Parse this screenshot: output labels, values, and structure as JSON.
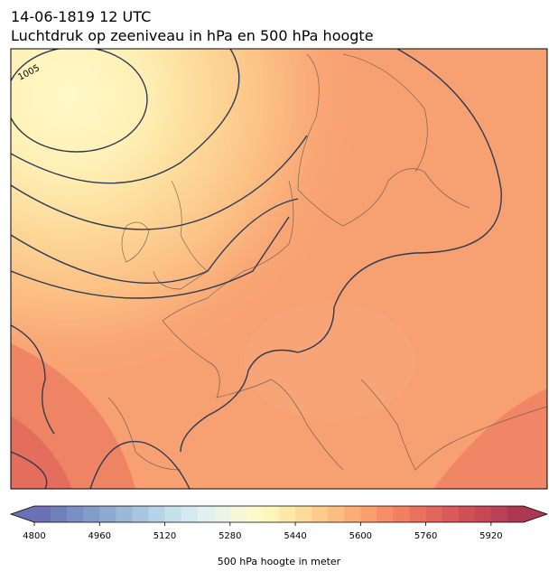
{
  "title": "14-06-1819 12 UTC",
  "subtitle": "Luchtdruk op zeeniveau in hPa en 500 hPa hoogte",
  "map": {
    "contour_labels": [
      "1005"
    ]
  },
  "colorbar": {
    "label": "500 hPa hoogte in meter",
    "lim": [
      4800,
      6000
    ],
    "ticks": [
      4800,
      4960,
      5120,
      5280,
      5440,
      5600,
      5760,
      5920
    ],
    "colors": [
      "#6b72b3",
      "#7180b9",
      "#7a8fc1",
      "#849dc8",
      "#8eaace",
      "#9bb8d6",
      "#a9c6de",
      "#b8d3e6",
      "#c7e0ec",
      "#d5eaf0",
      "#e1f1f0",
      "#ebf5e6",
      "#f4f8d8",
      "#fbfac8",
      "#fef5ba",
      "#fee8a9",
      "#fddb9a",
      "#fdcc8c",
      "#fcbd80",
      "#fbad75",
      "#f99e6d",
      "#f58e67",
      "#f08062",
      "#e9725f",
      "#e1665c",
      "#d85b5a",
      "#ce5158",
      "#c44856",
      "#b94055",
      "#ac3852"
    ]
  }
}
